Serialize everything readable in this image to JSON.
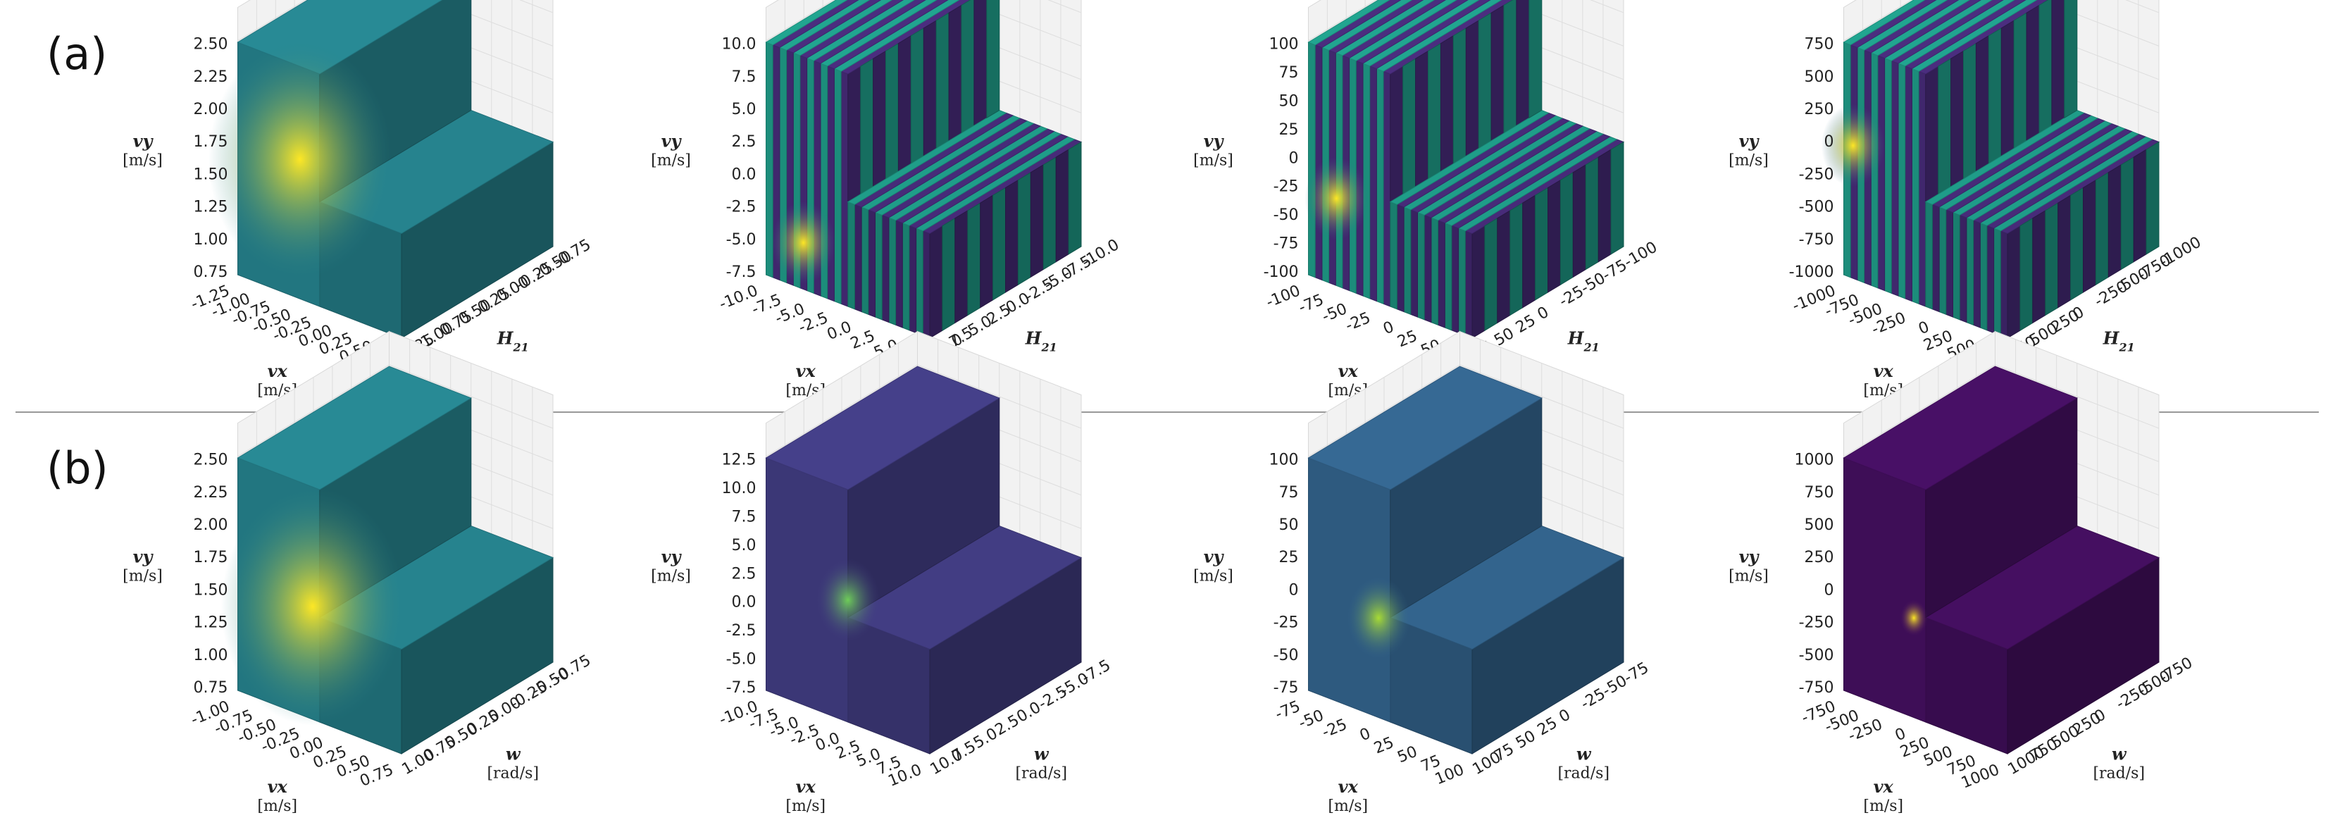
{
  "figure": {
    "row_labels": [
      "(a)",
      "(b)"
    ]
  },
  "chart_data": [
    {
      "type": "scatter",
      "row": "(a)",
      "xlabel": "vx",
      "xunit": "[m/s]",
      "ylabel": "vy",
      "yunit": "[m/s]",
      "zlabel": "H21",
      "zunit": "",
      "x_ticks": [
        "-1.25",
        "-1.00",
        "-0.75",
        "-0.50",
        "-0.25",
        "0.00",
        "0.25",
        "0.50",
        "1.25"
      ],
      "y_ticks": [
        "0.75",
        "1.00",
        "1.25",
        "1.50",
        "1.75",
        "2.00",
        "2.25",
        "2.50"
      ],
      "z_ticks": [
        "1.25",
        "1.00",
        "0.75",
        "0.50",
        "0.25",
        "0.00",
        "-0.25",
        "-0.50",
        "-0.75"
      ],
      "x_range": [
        -1.25,
        1.25
      ],
      "y_range": [
        0.75,
        2.5
      ],
      "z_range": [
        -0.75,
        1.25
      ],
      "pattern": "smooth",
      "hot_spots": [
        {
          "x": -0.3,
          "y": 1.8,
          "intensity": 1.0
        }
      ],
      "colormap": "viridis"
    },
    {
      "type": "scatter",
      "row": "(a)",
      "xlabel": "vx",
      "xunit": "[m/s]",
      "ylabel": "vy",
      "yunit": "[m/s]",
      "zlabel": "H21",
      "zunit": "",
      "x_ticks": [
        "-10.0",
        "-7.5",
        "-5.0",
        "-2.5",
        "0.0",
        "2.5",
        "5.0",
        "7.5"
      ],
      "y_ticks": [
        "-7.5",
        "-5.0",
        "-2.5",
        "0.0",
        "2.5",
        "5.0",
        "7.5",
        "10.0"
      ],
      "z_ticks": [
        "10.0",
        "7.5",
        "5.0",
        "2.5",
        "0.0",
        "-2.5",
        "-5.0",
        "-7.5",
        "-10.0"
      ],
      "x_range": [
        -10,
        7.5
      ],
      "y_range": [
        -7.5,
        10
      ],
      "z_range": [
        -10,
        10
      ],
      "pattern": "striped",
      "hot_spots": [
        {
          "x": -6,
          "y": -4,
          "intensity": 0.9
        },
        {
          "x": 0,
          "y": 1,
          "intensity": 0.9
        }
      ],
      "colormap": "viridis"
    },
    {
      "type": "scatter",
      "row": "(a)",
      "xlabel": "vx",
      "xunit": "[m/s]",
      "ylabel": "vy",
      "yunit": "[m/s]",
      "zlabel": "H21",
      "zunit": "",
      "x_ticks": [
        "-100",
        "-75",
        "-50",
        "-25",
        "0",
        "25",
        "50",
        "75"
      ],
      "y_ticks": [
        "-100",
        "-75",
        "-50",
        "-25",
        "0",
        "25",
        "50",
        "75",
        "100"
      ],
      "z_ticks": [
        "75",
        "50",
        "25",
        "0",
        "-25",
        "-50",
        "-75",
        "-100"
      ],
      "x_range": [
        -100,
        75
      ],
      "y_range": [
        -100,
        100
      ],
      "z_range": [
        -100,
        75
      ],
      "pattern": "striped",
      "hot_spots": [
        {
          "x": -70,
          "y": -25,
          "intensity": 0.9
        }
      ],
      "colormap": "viridis"
    },
    {
      "type": "scatter",
      "row": "(a)",
      "xlabel": "vx",
      "xunit": "[m/s]",
      "ylabel": "vy",
      "yunit": "[m/s]",
      "zlabel": "H21",
      "zunit": "",
      "x_ticks": [
        "-1000",
        "-750",
        "-500",
        "-250",
        "0",
        "250",
        "500",
        "750"
      ],
      "y_ticks": [
        "-1000",
        "-750",
        "-500",
        "-250",
        "0",
        "250",
        "500",
        "750"
      ],
      "z_ticks": [
        "750",
        "500",
        "250",
        "0",
        "-250",
        "-500",
        "-750",
        "-1000"
      ],
      "x_range": [
        -1000,
        750
      ],
      "y_range": [
        -1000,
        750
      ],
      "z_range": [
        -1000,
        750
      ],
      "pattern": "striped",
      "hot_spots": [
        {
          "x": -900,
          "y": 0,
          "intensity": 0.85
        }
      ],
      "colormap": "viridis"
    },
    {
      "type": "scatter",
      "row": "(b)",
      "xlabel": "vx",
      "xunit": "[m/s]",
      "ylabel": "vy",
      "yunit": "[m/s]",
      "zlabel": "w",
      "zunit": "[rad/s]",
      "x_ticks": [
        "-1.00",
        "-0.75",
        "-0.50",
        "-0.25",
        "0.00",
        "0.25",
        "0.50",
        "0.75"
      ],
      "y_ticks": [
        "0.75",
        "1.00",
        "1.25",
        "1.50",
        "1.75",
        "2.00",
        "2.25",
        "2.50"
      ],
      "z_ticks": [
        "1.00",
        "0.75",
        "0.50",
        "0.25",
        "0.00",
        "-0.25",
        "-0.50",
        "-0.75"
      ],
      "x_range": [
        -1.0,
        0.75
      ],
      "y_range": [
        0.75,
        2.5
      ],
      "z_range": [
        -0.75,
        1.0
      ],
      "pattern": "smooth",
      "hot_spots": [
        {
          "x": -0.2,
          "y": 1.6,
          "intensity": 1.0
        }
      ],
      "colormap": "viridis"
    },
    {
      "type": "scatter",
      "row": "(b)",
      "xlabel": "vx",
      "xunit": "[m/s]",
      "ylabel": "vy",
      "yunit": "[m/s]",
      "zlabel": "w",
      "zunit": "[rad/s]",
      "x_ticks": [
        "-10.0",
        "-7.5",
        "-5.0",
        "-2.5",
        "0.0",
        "2.5",
        "5.0",
        "7.5",
        "10.0"
      ],
      "y_ticks": [
        "-7.5",
        "-5.0",
        "-2.5",
        "0.0",
        "2.5",
        "5.0",
        "7.5",
        "10.0",
        "12.5"
      ],
      "z_ticks": [
        "10.0",
        "7.5",
        "5.0",
        "2.5",
        "0.0",
        "-2.5",
        "-5.0",
        "-7.5"
      ],
      "x_range": [
        -10,
        10
      ],
      "y_range": [
        -7.5,
        12.5
      ],
      "z_range": [
        -7.5,
        10
      ],
      "pattern": "dark",
      "hot_spots": [
        {
          "x": 0,
          "y": 3,
          "intensity": 0.6
        }
      ],
      "colormap": "viridis"
    },
    {
      "type": "scatter",
      "row": "(b)",
      "xlabel": "vx",
      "xunit": "[m/s]",
      "ylabel": "vy",
      "yunit": "[m/s]",
      "zlabel": "w",
      "zunit": "[rad/s]",
      "x_ticks": [
        "-75",
        "-50",
        "-25",
        "0",
        "25",
        "50",
        "75",
        "100"
      ],
      "y_ticks": [
        "-75",
        "-50",
        "-25",
        "0",
        "25",
        "50",
        "75",
        "100"
      ],
      "z_ticks": [
        "100",
        "75",
        "50",
        "25",
        "0",
        "-25",
        "-50",
        "-75"
      ],
      "x_range": [
        -75,
        100
      ],
      "y_range": [
        -75,
        100
      ],
      "z_range": [
        -75,
        100
      ],
      "pattern": "medium",
      "hot_spots": [
        {
          "x": 0,
          "y": 0,
          "intensity": 0.55
        }
      ],
      "colormap": "viridis"
    },
    {
      "type": "scatter",
      "row": "(b)",
      "xlabel": "vx",
      "xunit": "[m/s]",
      "ylabel": "vy",
      "yunit": "[m/s]",
      "zlabel": "w",
      "zunit": "[rad/s]",
      "x_ticks": [
        "-750",
        "-500",
        "-250",
        "0",
        "250",
        "500",
        "750",
        "1000"
      ],
      "y_ticks": [
        "-750",
        "-500",
        "-250",
        "0",
        "250",
        "500",
        "750",
        "1000"
      ],
      "z_ticks": [
        "1000",
        "750",
        "500",
        "250",
        "0",
        "-250",
        "-500",
        "-750"
      ],
      "x_range": [
        -750,
        1000
      ],
      "y_range": [
        -750,
        1000
      ],
      "z_range": [
        -750,
        1000
      ],
      "pattern": "verydark",
      "hot_spots": [
        {
          "x": 0,
          "y": 0,
          "intensity": 1.0
        }
      ],
      "colormap": "viridis"
    }
  ]
}
